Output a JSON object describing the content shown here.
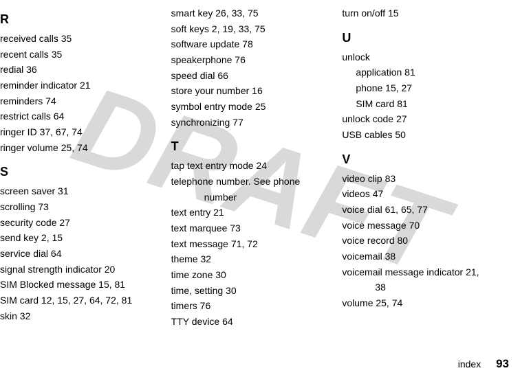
{
  "watermark": "DRAFT",
  "columns": [
    {
      "sections": [
        {
          "head": "R",
          "entries": [
            {
              "text": "received calls  35"
            },
            {
              "text": "recent calls  35"
            },
            {
              "text": "redial  36"
            },
            {
              "text": "reminder indicator  21"
            },
            {
              "text": "reminders  74"
            },
            {
              "text": "restrict calls  64"
            },
            {
              "text": "ringer ID  37, 67, 74"
            },
            {
              "text": "ringer volume  25, 74"
            }
          ]
        },
        {
          "head": "S",
          "entries": [
            {
              "text": "screen saver  31"
            },
            {
              "text": "scrolling  73"
            },
            {
              "text": "security code  27"
            },
            {
              "text": "send key  2, 15"
            },
            {
              "text": "service dial  64"
            },
            {
              "text": "signal strength indicator  20"
            },
            {
              "text": "SIM Blocked message  15, 81"
            },
            {
              "text": "SIM card  12, 15, 27, 64, 72, 81"
            },
            {
              "text": "skin  32"
            }
          ]
        }
      ]
    },
    {
      "sections": [
        {
          "head": "",
          "entries": [
            {
              "text": "smart key  26, 33, 75"
            },
            {
              "text": "soft keys  2, 19, 33, 75"
            },
            {
              "text": "software update  78"
            },
            {
              "text": "speakerphone  76"
            },
            {
              "text": "speed dial  66"
            },
            {
              "text": "store your number  16"
            },
            {
              "text": "symbol entry mode  25"
            },
            {
              "text": "synchronizing  77"
            }
          ]
        },
        {
          "head": "T",
          "entries": [
            {
              "text": "tap text entry mode  24"
            },
            {
              "text": "telephone number. See phone "
            },
            {
              "text": "number",
              "sub": true
            },
            {
              "text": "text entry  21"
            },
            {
              "text": "text marquee  73"
            },
            {
              "text": "text message  71, 72"
            },
            {
              "text": "theme  32"
            },
            {
              "text": "time zone  30"
            },
            {
              "text": "time, setting  30"
            },
            {
              "text": "timers  76"
            },
            {
              "text": "TTY device  64"
            }
          ]
        }
      ]
    },
    {
      "sections": [
        {
          "head": "",
          "entries": [
            {
              "text": "turn on/off  15"
            }
          ]
        },
        {
          "head": "U",
          "entries": [
            {
              "text": "unlock"
            },
            {
              "text": "application  81",
              "sub2": true
            },
            {
              "text": "phone  15, 27",
              "sub2": true
            },
            {
              "text": "SIM card  81",
              "sub2": true
            },
            {
              "text": "unlock code  27"
            },
            {
              "text": "USB cables  50"
            }
          ]
        },
        {
          "head": "V",
          "entries": [
            {
              "text": "video clip  83"
            },
            {
              "text": "videos  47"
            },
            {
              "text": "voice dial  61, 65, 77"
            },
            {
              "text": "voice message  70"
            },
            {
              "text": "voice record  80"
            },
            {
              "text": "voicemail  38"
            },
            {
              "text": "voicemail message indicator  21, "
            },
            {
              "text": "38",
              "sub": true
            },
            {
              "text": "volume  25, 74"
            }
          ]
        }
      ]
    }
  ],
  "footer_label": "index",
  "footer_page": "93"
}
